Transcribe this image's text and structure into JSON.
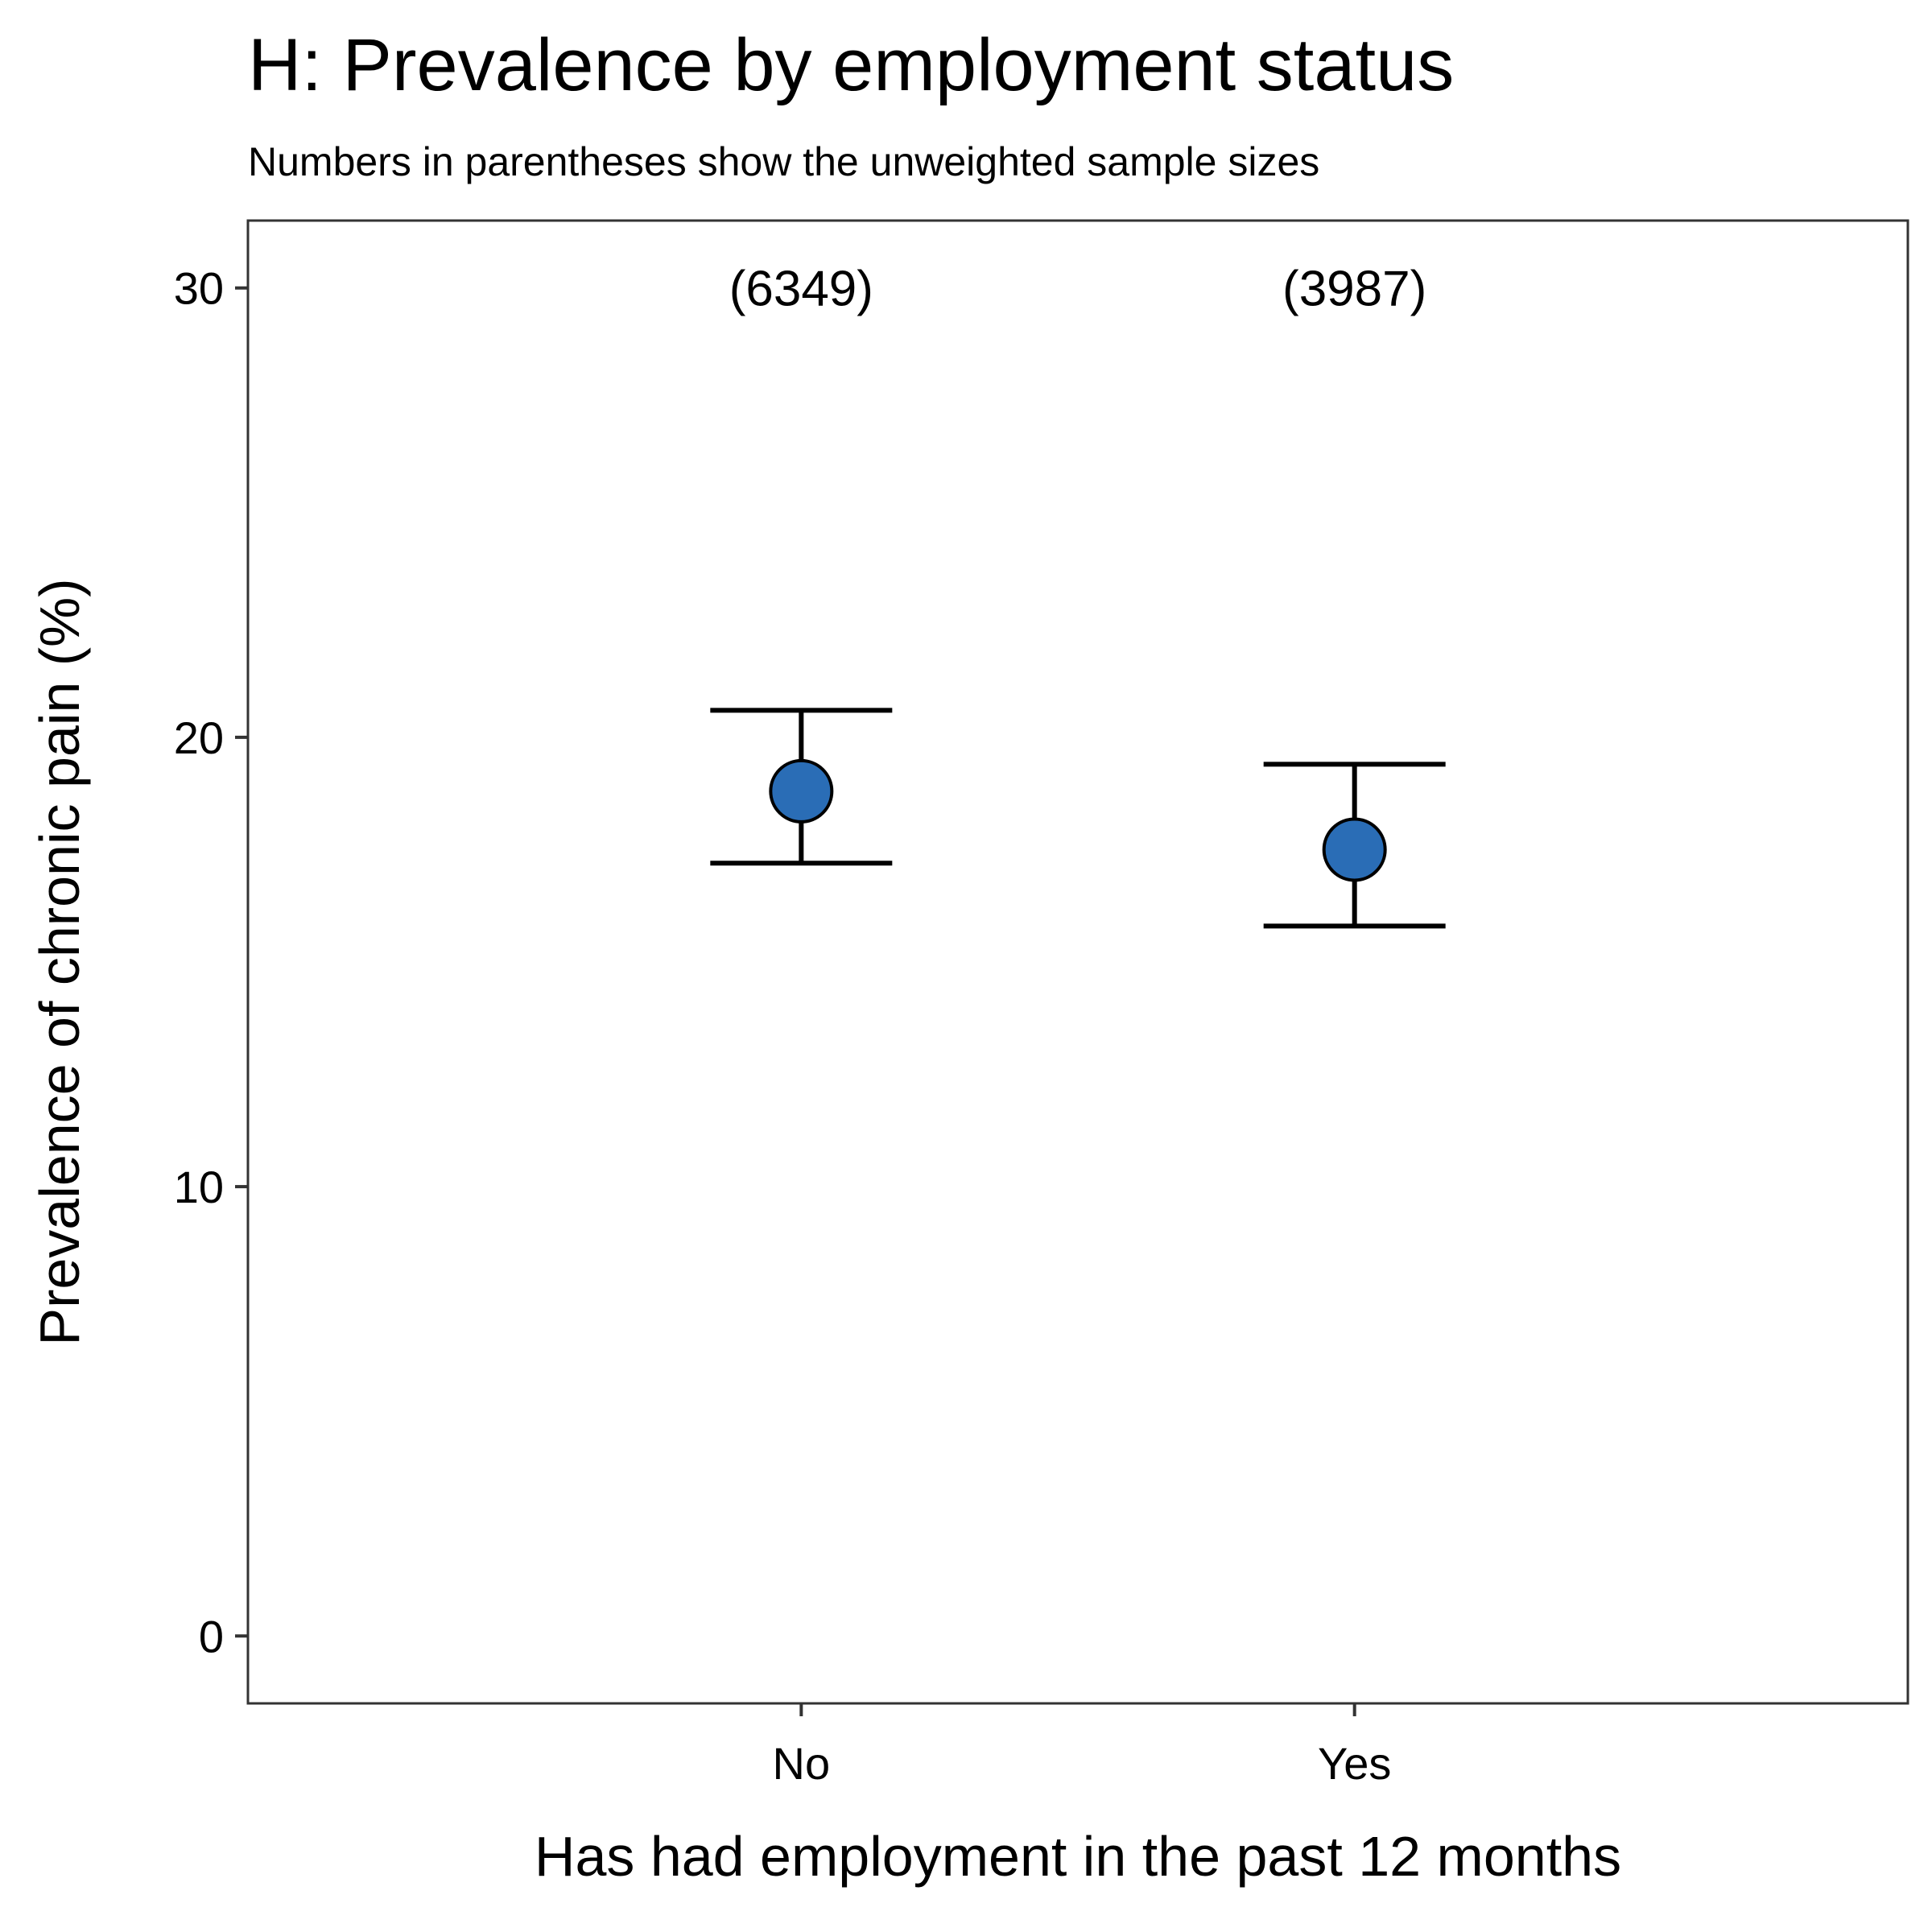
{
  "chart_data": {
    "type": "scatter",
    "title": "H: Prevalence by employment status",
    "subtitle": "Numbers in parentheses show the unweighted sample sizes",
    "xlabel": "Has had employment in the past 12 months",
    "ylabel": "Prevalence of chronic pain (%)",
    "categories": [
      "No",
      "Yes"
    ],
    "ylim": [
      -1.5,
      31.5
    ],
    "yticks": [
      0,
      10,
      20,
      30
    ],
    "grid": false,
    "legend": "none",
    "series": [
      {
        "values": [
          18.8,
          17.5
        ],
        "lower": [
          17.2,
          15.8
        ],
        "upper": [
          20.6,
          19.4
        ],
        "sample_size_labels": [
          "(6349)",
          "(3987)"
        ],
        "label_y": 30,
        "color": "#2a6db6"
      }
    ]
  }
}
